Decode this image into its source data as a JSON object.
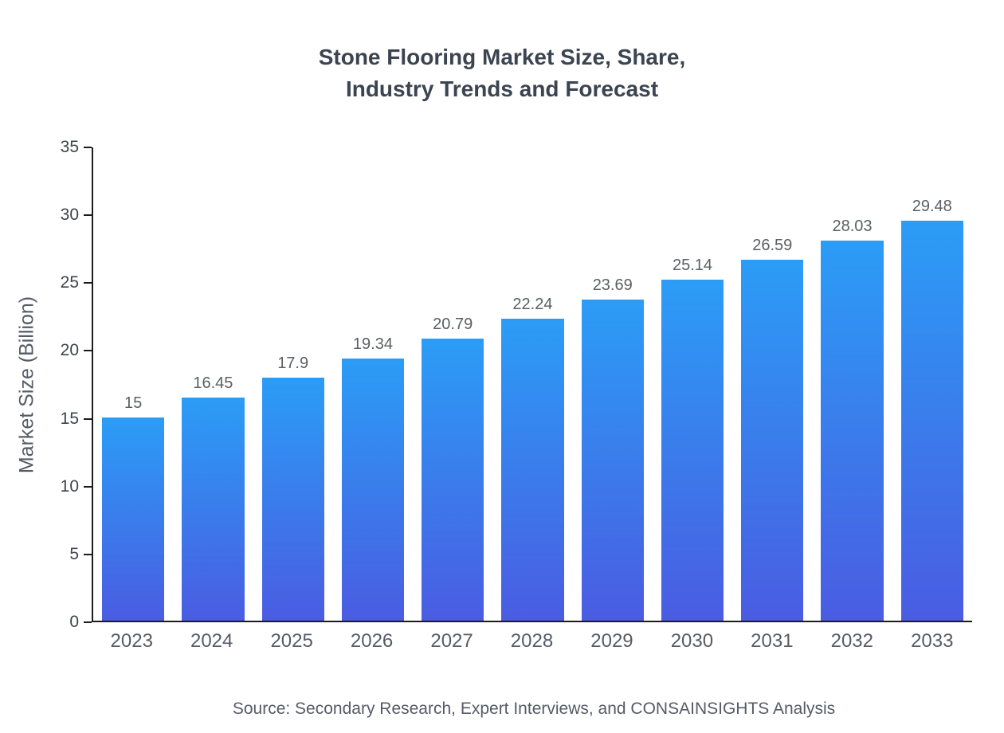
{
  "title": {
    "line1": "Stone Flooring Market Size, Share,",
    "line2": "Industry Trends and Forecast"
  },
  "source": "Source: Secondary Research, Expert Interviews, and CONSAINSIGHTS Analysis",
  "colors": {
    "bar_gradient_top": "#2b9df6",
    "bar_gradient_bottom": "#4a5ce2",
    "axis": "#1c1c1c",
    "title_text": "#3b4450",
    "label_text": "#555c66"
  },
  "chart_data": {
    "type": "bar",
    "title": "Stone Flooring Market Size, Share, Industry Trends and Forecast",
    "categories": [
      "2023",
      "2024",
      "2025",
      "2026",
      "2027",
      "2028",
      "2029",
      "2030",
      "2031",
      "2032",
      "2033"
    ],
    "values": [
      15,
      16.45,
      17.9,
      19.34,
      20.79,
      22.24,
      23.69,
      25.14,
      26.59,
      28.03,
      29.48
    ],
    "value_labels": [
      "15",
      "16.45",
      "17.9",
      "19.34",
      "20.79",
      "22.24",
      "23.69",
      "25.14",
      "26.59",
      "28.03",
      "29.48"
    ],
    "xlabel": "",
    "ylabel": "Market Size (Billion)",
    "ylim": [
      0,
      35
    ],
    "yticks": [
      0,
      5,
      10,
      15,
      20,
      25,
      30,
      35
    ],
    "grid": false,
    "legend": false
  }
}
